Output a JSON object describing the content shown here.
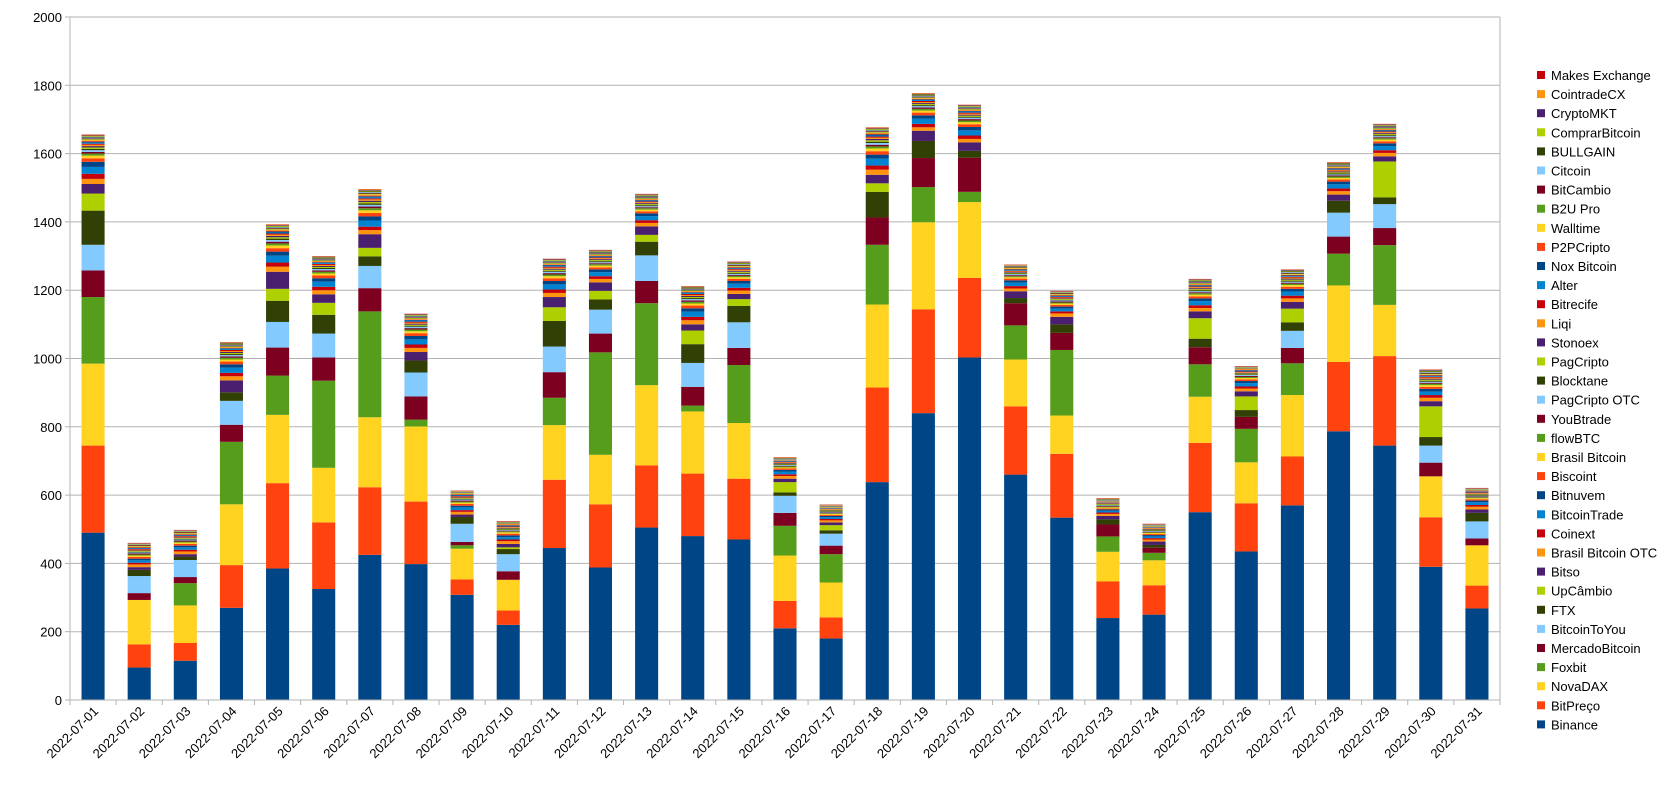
{
  "chart_data": {
    "type": "bar",
    "stacked": true,
    "title": "",
    "xlabel": "",
    "ylabel": "",
    "ylim": [
      0,
      2000
    ],
    "yticks": [
      0,
      200,
      400,
      600,
      800,
      1000,
      1200,
      1400,
      1600,
      1800,
      2000
    ],
    "grid": true,
    "legend_position": "right",
    "categories": [
      "2022-07-01",
      "2022-07-02",
      "2022-07-03",
      "2022-07-04",
      "2022-07-05",
      "2022-07-06",
      "2022-07-07",
      "2022-07-08",
      "2022-07-09",
      "2022-07-10",
      "2022-07-11",
      "2022-07-12",
      "2022-07-13",
      "2022-07-14",
      "2022-07-15",
      "2022-07-16",
      "2022-07-17",
      "2022-07-18",
      "2022-07-19",
      "2022-07-20",
      "2022-07-21",
      "2022-07-22",
      "2022-07-23",
      "2022-07-24",
      "2022-07-25",
      "2022-07-26",
      "2022-07-27",
      "2022-07-28",
      "2022-07-29",
      "2022-07-30",
      "2022-07-31"
    ],
    "series": [
      {
        "name": "Binance",
        "color": "#004586",
        "values": [
          490,
          95,
          115,
          270,
          385,
          325,
          425,
          398,
          308,
          220,
          445,
          388,
          505,
          480,
          470,
          210,
          180,
          638,
          840,
          1003,
          660,
          534,
          240,
          250,
          550,
          435,
          570,
          787,
          745,
          390,
          268
        ]
      },
      {
        "name": "BitPreço",
        "color": "#ff420e",
        "values": [
          255,
          68,
          52,
          125,
          250,
          195,
          198,
          183,
          45,
          42,
          200,
          185,
          182,
          183,
          178,
          80,
          62,
          277,
          304,
          233,
          200,
          187,
          107,
          86,
          203,
          141,
          143,
          203,
          262,
          145,
          67
        ]
      },
      {
        "name": "NovaDAX",
        "color": "#ffd320",
        "values": [
          240,
          130,
          110,
          178,
          200,
          160,
          205,
          220,
          90,
          90,
          160,
          145,
          235,
          182,
          163,
          133,
          102,
          243,
          255,
          222,
          137,
          112,
          87,
          73,
          135,
          120,
          180,
          224,
          150,
          120,
          118
        ]
      },
      {
        "name": "Foxbit",
        "color": "#579d1c",
        "values": [
          195,
          0,
          65,
          183,
          115,
          255,
          310,
          20,
          10,
          0,
          80,
          300,
          240,
          17,
          170,
          87,
          83,
          175,
          103,
          30,
          100,
          192,
          45,
          22,
          95,
          98,
          93,
          93,
          175,
          0,
          0
        ]
      },
      {
        "name": "MercadoBitcoin",
        "color": "#7e0021",
        "values": [
          78,
          20,
          18,
          50,
          82,
          68,
          68,
          68,
          10,
          25,
          75,
          55,
          65,
          55,
          50,
          38,
          25,
          80,
          85,
          100,
          65,
          50,
          35,
          15,
          50,
          35,
          45,
          50,
          50,
          40,
          20
        ]
      },
      {
        "name": "BitcoinToYou",
        "color": "#83caff",
        "values": [
          75,
          50,
          50,
          70,
          75,
          70,
          65,
          70,
          53,
          50,
          75,
          70,
          75,
          70,
          75,
          50,
          35,
          0,
          0,
          0,
          0,
          0,
          0,
          0,
          0,
          0,
          50,
          70,
          70,
          50,
          50
        ]
      },
      {
        "name": "FTX",
        "color": "#314004",
        "values": [
          100,
          18,
          10,
          25,
          62,
          55,
          28,
          35,
          20,
          15,
          75,
          30,
          40,
          55,
          48,
          10,
          10,
          75,
          50,
          20,
          15,
          25,
          15,
          8,
          25,
          20,
          25,
          35,
          20,
          25,
          25
        ]
      },
      {
        "name": "UpCâmbio",
        "color": "#aecf00",
        "values": [
          50,
          0,
          0,
          0,
          35,
          35,
          25,
          0,
          0,
          5,
          40,
          25,
          20,
          40,
          20,
          30,
          15,
          25,
          0,
          0,
          0,
          0,
          0,
          0,
          60,
          40,
          40,
          0,
          105,
          90,
          0
        ]
      },
      {
        "name": "Bitso",
        "color": "#4b1f6f",
        "values": [
          28,
          8,
          7,
          35,
          50,
          25,
          40,
          25,
          7,
          10,
          30,
          25,
          25,
          18,
          15,
          10,
          8,
          25,
          30,
          25,
          20,
          22,
          10,
          10,
          20,
          15,
          20,
          18,
          15,
          15,
          10
        ]
      },
      {
        "name": "Brasil Bitcoin OTC",
        "color": "#ff950e",
        "values": [
          15,
          8,
          8,
          12,
          15,
          12,
          12,
          12,
          8,
          8,
          12,
          10,
          10,
          12,
          10,
          8,
          6,
          15,
          10,
          10,
          8,
          10,
          6,
          6,
          10,
          8,
          10,
          10,
          10,
          10,
          8
        ]
      },
      {
        "name": "Coinext",
        "color": "#c5000b",
        "values": [
          15,
          5,
          5,
          10,
          12,
          10,
          10,
          10,
          5,
          5,
          10,
          8,
          8,
          10,
          8,
          5,
          4,
          12,
          10,
          10,
          7,
          6,
          4,
          4,
          8,
          6,
          8,
          8,
          8,
          8,
          5
        ]
      },
      {
        "name": "BitcoinTrade",
        "color": "#0084d1",
        "values": [
          20,
          7,
          7,
          15,
          20,
          15,
          18,
          15,
          8,
          7,
          15,
          12,
          12,
          15,
          12,
          8,
          5,
          20,
          15,
          15,
          10,
          8,
          5,
          5,
          12,
          10,
          12,
          12,
          12,
          10,
          8
        ]
      },
      {
        "name": "Bitnuvem",
        "color": "#004586",
        "values": [
          15,
          5,
          5,
          10,
          12,
          10,
          12,
          10,
          5,
          5,
          10,
          8,
          8,
          10,
          8,
          5,
          4,
          12,
          10,
          10,
          7,
          6,
          4,
          4,
          8,
          6,
          8,
          8,
          8,
          8,
          5
        ]
      },
      {
        "name": "Biscoint",
        "color": "#ff420e",
        "values": [
          10,
          5,
          5,
          8,
          10,
          8,
          10,
          8,
          5,
          5,
          8,
          6,
          6,
          8,
          6,
          4,
          3,
          10,
          8,
          8,
          5,
          5,
          3,
          3,
          6,
          5,
          6,
          6,
          6,
          6,
          4
        ]
      },
      {
        "name": "Brasil Bitcoin",
        "color": "#ffd320",
        "values": [
          8,
          4,
          4,
          6,
          8,
          6,
          8,
          6,
          4,
          4,
          6,
          5,
          5,
          6,
          5,
          3,
          3,
          8,
          6,
          6,
          4,
          4,
          3,
          3,
          5,
          4,
          5,
          5,
          5,
          5,
          3
        ]
      },
      {
        "name": "flowBTC",
        "color": "#579d1c",
        "values": [
          6,
          3,
          3,
          5,
          6,
          5,
          6,
          5,
          3,
          3,
          5,
          4,
          4,
          5,
          4,
          3,
          2,
          6,
          5,
          5,
          3,
          3,
          2,
          2,
          4,
          3,
          4,
          4,
          4,
          4,
          3
        ]
      },
      {
        "name": "YouBtrade",
        "color": "#7e0021",
        "values": [
          5,
          3,
          3,
          4,
          5,
          4,
          5,
          4,
          3,
          2,
          4,
          3,
          3,
          4,
          3,
          2,
          2,
          5,
          4,
          4,
          3,
          3,
          2,
          2,
          3,
          3,
          3,
          3,
          3,
          3,
          2
        ]
      },
      {
        "name": "PagCripto OTC",
        "color": "#83caff",
        "values": [
          5,
          3,
          3,
          4,
          5,
          4,
          5,
          4,
          3,
          2,
          4,
          3,
          3,
          4,
          3,
          2,
          2,
          5,
          4,
          4,
          3,
          3,
          2,
          2,
          3,
          3,
          3,
          3,
          3,
          3,
          2
        ]
      },
      {
        "name": "Blocktane",
        "color": "#314004",
        "values": [
          4,
          2,
          2,
          3,
          4,
          3,
          4,
          3,
          2,
          2,
          3,
          3,
          3,
          3,
          3,
          2,
          2,
          4,
          3,
          3,
          2,
          2,
          2,
          2,
          3,
          2,
          3,
          3,
          3,
          3,
          2
        ]
      },
      {
        "name": "PagCripto",
        "color": "#aecf00",
        "values": [
          4,
          2,
          2,
          3,
          4,
          3,
          4,
          3,
          2,
          2,
          3,
          3,
          3,
          3,
          3,
          2,
          2,
          4,
          3,
          3,
          2,
          2,
          2,
          2,
          3,
          2,
          3,
          3,
          3,
          3,
          2
        ]
      },
      {
        "name": "Stonoex",
        "color": "#4b1f6f",
        "values": [
          4,
          2,
          2,
          3,
          4,
          3,
          4,
          3,
          2,
          2,
          3,
          3,
          3,
          3,
          3,
          2,
          2,
          4,
          3,
          3,
          2,
          2,
          2,
          2,
          3,
          2,
          3,
          3,
          3,
          3,
          2
        ]
      },
      {
        "name": "Liqi",
        "color": "#ff950e",
        "values": [
          4,
          2,
          2,
          3,
          4,
          3,
          4,
          3,
          2,
          2,
          3,
          3,
          3,
          3,
          3,
          2,
          2,
          4,
          3,
          3,
          2,
          2,
          2,
          2,
          3,
          2,
          3,
          3,
          3,
          3,
          2
        ]
      },
      {
        "name": "Bitrecife",
        "color": "#c5000b",
        "values": [
          3,
          2,
          2,
          3,
          3,
          3,
          3,
          3,
          2,
          2,
          3,
          2,
          2,
          3,
          2,
          2,
          1,
          3,
          3,
          3,
          2,
          2,
          1,
          1,
          2,
          2,
          2,
          2,
          2,
          2,
          2
        ]
      },
      {
        "name": "Alter",
        "color": "#0084d1",
        "values": [
          3,
          2,
          2,
          3,
          3,
          3,
          3,
          3,
          2,
          2,
          3,
          2,
          2,
          3,
          2,
          2,
          1,
          3,
          3,
          3,
          2,
          2,
          1,
          1,
          2,
          2,
          2,
          2,
          2,
          2,
          2
        ]
      },
      {
        "name": "Nox Bitcoin",
        "color": "#004586",
        "values": [
          3,
          2,
          2,
          2,
          3,
          2,
          3,
          2,
          2,
          2,
          2,
          2,
          2,
          2,
          2,
          1,
          1,
          3,
          2,
          2,
          2,
          2,
          1,
          1,
          2,
          2,
          2,
          2,
          2,
          2,
          1
        ]
      },
      {
        "name": "P2PCripto",
        "color": "#ff420e",
        "values": [
          3,
          2,
          2,
          2,
          3,
          2,
          3,
          2,
          2,
          2,
          2,
          2,
          2,
          2,
          2,
          1,
          1,
          3,
          2,
          2,
          2,
          2,
          1,
          1,
          2,
          2,
          2,
          2,
          2,
          2,
          1
        ]
      },
      {
        "name": "Walltime",
        "color": "#ffd320",
        "values": [
          3,
          2,
          2,
          2,
          3,
          2,
          3,
          2,
          2,
          2,
          2,
          2,
          2,
          2,
          2,
          1,
          1,
          3,
          2,
          2,
          2,
          2,
          1,
          1,
          2,
          2,
          2,
          2,
          2,
          2,
          1
        ]
      },
      {
        "name": "B2U Pro",
        "color": "#579d1c",
        "values": [
          2,
          2,
          2,
          2,
          2,
          2,
          2,
          2,
          1,
          1,
          2,
          2,
          2,
          2,
          2,
          1,
          1,
          2,
          2,
          2,
          2,
          2,
          1,
          1,
          2,
          1,
          2,
          2,
          2,
          2,
          1
        ]
      },
      {
        "name": "BitCambio",
        "color": "#7e0021",
        "values": [
          2,
          2,
          2,
          2,
          2,
          2,
          2,
          2,
          1,
          1,
          2,
          2,
          2,
          2,
          2,
          1,
          1,
          2,
          2,
          2,
          2,
          2,
          1,
          1,
          2,
          1,
          2,
          2,
          2,
          2,
          1
        ]
      },
      {
        "name": "Citcoin",
        "color": "#83caff",
        "values": [
          2,
          1,
          1,
          2,
          2,
          2,
          2,
          2,
          1,
          1,
          2,
          2,
          2,
          2,
          2,
          1,
          1,
          2,
          2,
          2,
          1,
          1,
          1,
          1,
          2,
          1,
          2,
          2,
          2,
          2,
          1
        ]
      },
      {
        "name": "BULLGAIN",
        "color": "#314004",
        "values": [
          2,
          1,
          1,
          2,
          2,
          2,
          2,
          2,
          1,
          1,
          2,
          2,
          2,
          2,
          2,
          1,
          1,
          2,
          2,
          2,
          1,
          1,
          1,
          1,
          2,
          1,
          2,
          2,
          2,
          2,
          1
        ]
      },
      {
        "name": "ComprarBitcoin",
        "color": "#aecf00",
        "values": [
          2,
          1,
          1,
          2,
          2,
          2,
          2,
          2,
          1,
          1,
          2,
          2,
          2,
          2,
          2,
          1,
          1,
          2,
          2,
          2,
          1,
          1,
          1,
          1,
          2,
          1,
          2,
          2,
          2,
          2,
          1
        ]
      },
      {
        "name": "CryptoMKT",
        "color": "#4b1f6f",
        "values": [
          2,
          1,
          1,
          2,
          2,
          2,
          2,
          2,
          1,
          1,
          2,
          2,
          2,
          2,
          2,
          1,
          1,
          2,
          2,
          2,
          1,
          1,
          1,
          1,
          2,
          1,
          2,
          2,
          2,
          2,
          1
        ]
      },
      {
        "name": "CointradeCX",
        "color": "#ff950e",
        "values": [
          2,
          1,
          1,
          1,
          2,
          1,
          2,
          1,
          1,
          1,
          1,
          1,
          1,
          1,
          1,
          1,
          1,
          2,
          1,
          1,
          1,
          1,
          1,
          1,
          1,
          1,
          1,
          1,
          1,
          1,
          1
        ]
      },
      {
        "name": "Makes Exchange",
        "color": "#c5000b",
        "values": [
          1,
          1,
          1,
          1,
          1,
          1,
          1,
          1,
          1,
          1,
          1,
          1,
          1,
          1,
          1,
          1,
          1,
          1,
          1,
          1,
          1,
          1,
          1,
          1,
          1,
          1,
          1,
          1,
          1,
          1,
          1
        ]
      }
    ]
  }
}
